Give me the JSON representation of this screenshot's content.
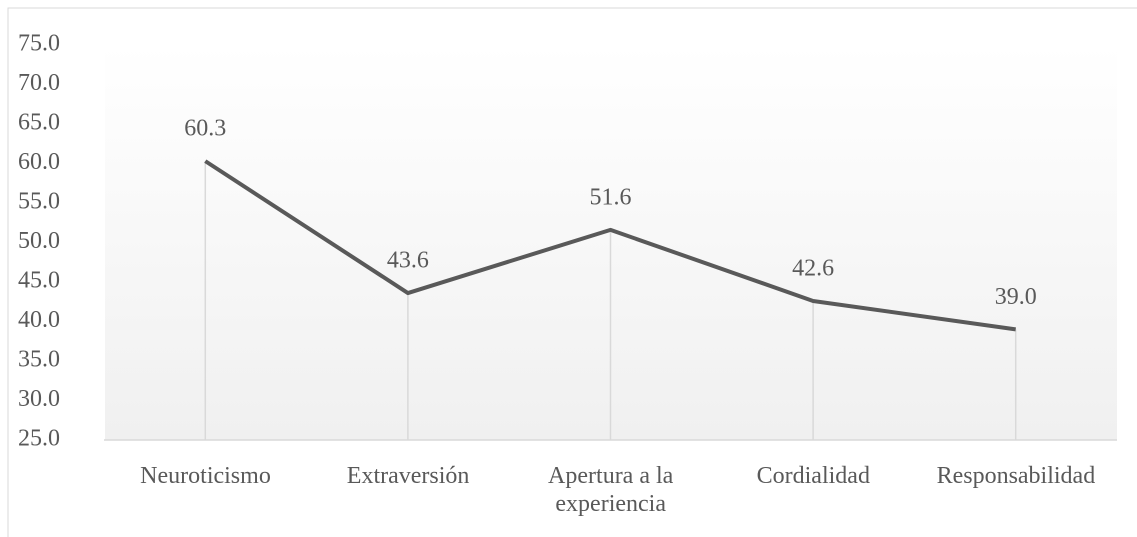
{
  "chart_data": {
    "type": "line",
    "categories": [
      "Neuroticismo",
      "Extraversión",
      "Apertura a la experiencia",
      "Cordialidad",
      "Responsabilidad"
    ],
    "series": [
      {
        "color": "#595959",
        "values": [
          60.3,
          43.6,
          51.6,
          42.6,
          39.0
        ],
        "value_labels": [
          "60.3",
          "43.6",
          "51.6",
          "42.6",
          "39.0"
        ]
      }
    ],
    "ylim": [
      25,
      75
    ],
    "yticks": [
      {
        "value": 25,
        "label": "25.0"
      },
      {
        "value": 30,
        "label": "30.0"
      },
      {
        "value": 35,
        "label": "35.0"
      },
      {
        "value": 40,
        "label": "40.0"
      },
      {
        "value": 45,
        "label": "45.0"
      },
      {
        "value": 50,
        "label": "50.0"
      },
      {
        "value": 55,
        "label": "55.0"
      },
      {
        "value": 60,
        "label": "60.0"
      },
      {
        "value": 65,
        "label": "65.0"
      },
      {
        "value": 70,
        "label": "70.0"
      },
      {
        "value": 75,
        "label": "75.0"
      }
    ],
    "grid": false,
    "drop_lines": true
  }
}
